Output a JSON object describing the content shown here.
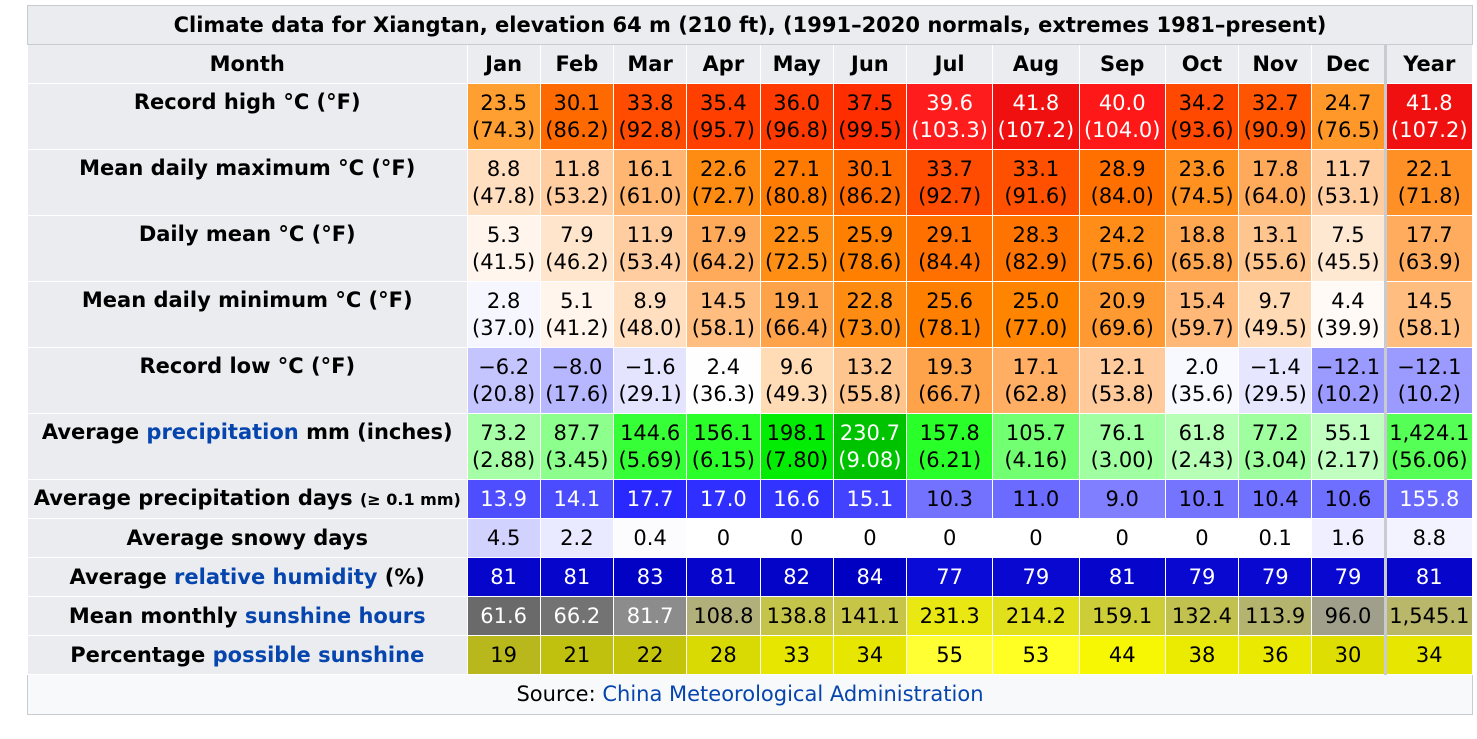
{
  "caption": "Climate data for Xiangtan, elevation 64 m (210 ft), (1991–2020 normals, extremes 1981–present)",
  "header": {
    "first": "Month",
    "months": [
      "Jan",
      "Feb",
      "Mar",
      "Apr",
      "May",
      "Jun",
      "Jul",
      "Aug",
      "Sep",
      "Oct",
      "Nov",
      "Dec"
    ],
    "year": "Year"
  },
  "rows": [
    {
      "label_parts": [
        {
          "text": "Record high °C (°F)"
        }
      ],
      "cells": [
        {
          "v": "23.5",
          "v2": "(74.3)",
          "bg": "#ff9e31",
          "fg": "#000000"
        },
        {
          "v": "30.1",
          "v2": "(86.2)",
          "bg": "#ff6a00",
          "fg": "#000000"
        },
        {
          "v": "33.8",
          "v2": "(92.8)",
          "bg": "#ff4c00",
          "fg": "#000000"
        },
        {
          "v": "35.4",
          "v2": "(95.7)",
          "bg": "#ff3f00",
          "fg": "#000000"
        },
        {
          "v": "36.0",
          "v2": "(96.8)",
          "bg": "#ff3a00",
          "fg": "#000000"
        },
        {
          "v": "37.5",
          "v2": "(99.5)",
          "bg": "#ff2e00",
          "fg": "#000000"
        },
        {
          "v": "39.6",
          "v2": "(103.3)",
          "bg": "#ff1c1c",
          "fg": "#ffffff"
        },
        {
          "v": "41.8",
          "v2": "(107.2)",
          "bg": "#f11010",
          "fg": "#ffffff"
        },
        {
          "v": "40.0",
          "v2": "(104.0)",
          "bg": "#ff1818",
          "fg": "#ffffff"
        },
        {
          "v": "34.2",
          "v2": "(93.6)",
          "bg": "#ff4800",
          "fg": "#000000"
        },
        {
          "v": "32.7",
          "v2": "(90.9)",
          "bg": "#ff5500",
          "fg": "#000000"
        },
        {
          "v": "24.7",
          "v2": "(76.5)",
          "bg": "#ff9829",
          "fg": "#000000"
        }
      ],
      "year": {
        "v": "41.8",
        "v2": "(107.2)",
        "bg": "#f11010",
        "fg": "#ffffff"
      }
    },
    {
      "label_parts": [
        {
          "text": "Mean daily maximum °C (°F)"
        }
      ],
      "cells": [
        {
          "v": "8.8",
          "v2": "(47.8)",
          "bg": "#ffdfc0",
          "fg": "#000000"
        },
        {
          "v": "11.8",
          "v2": "(53.2)",
          "bg": "#ffcda0",
          "fg": "#000000"
        },
        {
          "v": "16.1",
          "v2": "(61.0)",
          "bg": "#ffb672",
          "fg": "#000000"
        },
        {
          "v": "22.6",
          "v2": "(72.7)",
          "bg": "#ff8c12",
          "fg": "#000000"
        },
        {
          "v": "27.1",
          "v2": "(80.8)",
          "bg": "#ff7a00",
          "fg": "#000000"
        },
        {
          "v": "30.1",
          "v2": "(86.2)",
          "bg": "#ff6a00",
          "fg": "#000000"
        },
        {
          "v": "33.7",
          "v2": "(92.7)",
          "bg": "#ff4c00",
          "fg": "#000000"
        },
        {
          "v": "33.1",
          "v2": "(91.6)",
          "bg": "#ff5000",
          "fg": "#000000"
        },
        {
          "v": "28.9",
          "v2": "(84.0)",
          "bg": "#ff7000",
          "fg": "#000000"
        },
        {
          "v": "23.6",
          "v2": "(74.5)",
          "bg": "#ff9121",
          "fg": "#000000"
        },
        {
          "v": "17.8",
          "v2": "(64.0)",
          "bg": "#ffaa5b",
          "fg": "#000000"
        },
        {
          "v": "11.7",
          "v2": "(53.1)",
          "bg": "#ffcda0",
          "fg": "#000000"
        }
      ],
      "year": {
        "v": "22.1",
        "v2": "(71.8)",
        "bg": "#ff9025",
        "fg": "#000000"
      }
    },
    {
      "label_parts": [
        {
          "text": "Daily mean °C (°F)"
        }
      ],
      "cells": [
        {
          "v": "5.3",
          "v2": "(41.5)",
          "bg": "#fff5ec",
          "fg": "#000000"
        },
        {
          "v": "7.9",
          "v2": "(46.2)",
          "bg": "#ffe5cc",
          "fg": "#000000"
        },
        {
          "v": "11.9",
          "v2": "(53.4)",
          "bg": "#ffcda0",
          "fg": "#000000"
        },
        {
          "v": "17.9",
          "v2": "(64.2)",
          "bg": "#ffaa5b",
          "fg": "#000000"
        },
        {
          "v": "22.5",
          "v2": "(72.5)",
          "bg": "#ff8e15",
          "fg": "#000000"
        },
        {
          "v": "25.9",
          "v2": "(78.6)",
          "bg": "#ff8000",
          "fg": "#000000"
        },
        {
          "v": "29.1",
          "v2": "(84.4)",
          "bg": "#ff7000",
          "fg": "#000000"
        },
        {
          "v": "28.3",
          "v2": "(82.9)",
          "bg": "#ff7400",
          "fg": "#000000"
        },
        {
          "v": "24.2",
          "v2": "(75.6)",
          "bg": "#ff8d17",
          "fg": "#000000"
        },
        {
          "v": "18.8",
          "v2": "(65.8)",
          "bg": "#ffa650",
          "fg": "#000000"
        },
        {
          "v": "13.1",
          "v2": "(55.6)",
          "bg": "#ffc58e",
          "fg": "#000000"
        },
        {
          "v": "7.5",
          "v2": "(45.5)",
          "bg": "#ffe8d2",
          "fg": "#000000"
        }
      ],
      "year": {
        "v": "17.7",
        "v2": "(63.9)",
        "bg": "#ffac5e",
        "fg": "#000000"
      }
    },
    {
      "label_parts": [
        {
          "text": "Mean daily minimum °C (°F)"
        }
      ],
      "cells": [
        {
          "v": "2.8",
          "v2": "(37.0)",
          "bg": "#f6f6ff",
          "fg": "#000000"
        },
        {
          "v": "5.1",
          "v2": "(41.2)",
          "bg": "#fff5ec",
          "fg": "#000000"
        },
        {
          "v": "8.9",
          "v2": "(48.0)",
          "bg": "#ffdfc0",
          "fg": "#000000"
        },
        {
          "v": "14.5",
          "v2": "(58.1)",
          "bg": "#ffbd7f",
          "fg": "#000000"
        },
        {
          "v": "19.1",
          "v2": "(66.4)",
          "bg": "#ffa34b",
          "fg": "#000000"
        },
        {
          "v": "22.8",
          "v2": "(73.0)",
          "bg": "#ff8c12",
          "fg": "#000000"
        },
        {
          "v": "25.6",
          "v2": "(78.1)",
          "bg": "#ff8000",
          "fg": "#000000"
        },
        {
          "v": "25.0",
          "v2": "(77.0)",
          "bg": "#ff8400",
          "fg": "#000000"
        },
        {
          "v": "20.9",
          "v2": "(69.6)",
          "bg": "#ff9a33",
          "fg": "#000000"
        },
        {
          "v": "15.4",
          "v2": "(59.7)",
          "bg": "#ffb877",
          "fg": "#000000"
        },
        {
          "v": "9.7",
          "v2": "(49.5)",
          "bg": "#ffdab5",
          "fg": "#000000"
        },
        {
          "v": "4.4",
          "v2": "(39.9)",
          "bg": "#fffaf6",
          "fg": "#000000"
        }
      ],
      "year": {
        "v": "14.5",
        "v2": "(58.1)",
        "bg": "#ffbd7f",
        "fg": "#000000"
      }
    },
    {
      "label_parts": [
        {
          "text": "Record low °C (°F)"
        }
      ],
      "cells": [
        {
          "v": "−6.2",
          "v2": "(20.8)",
          "bg": "#c4c4ff",
          "fg": "#000000"
        },
        {
          "v": "−8.0",
          "v2": "(17.6)",
          "bg": "#b7b7ff",
          "fg": "#000000"
        },
        {
          "v": "−1.6",
          "v2": "(29.1)",
          "bg": "#e4e4ff",
          "fg": "#000000"
        },
        {
          "v": "2.4",
          "v2": "(36.3)",
          "bg": "#fefeff",
          "fg": "#000000"
        },
        {
          "v": "9.6",
          "v2": "(49.3)",
          "bg": "#ffdbb6",
          "fg": "#000000"
        },
        {
          "v": "13.2",
          "v2": "(55.8)",
          "bg": "#ffc58e",
          "fg": "#000000"
        },
        {
          "v": "19.3",
          "v2": "(66.7)",
          "bg": "#ffa34b",
          "fg": "#000000"
        },
        {
          "v": "17.1",
          "v2": "(62.8)",
          "bg": "#ffae63",
          "fg": "#000000"
        },
        {
          "v": "12.1",
          "v2": "(53.8)",
          "bg": "#ffcb9c",
          "fg": "#000000"
        },
        {
          "v": "2.0",
          "v2": "(35.6)",
          "bg": "#f8f8ff",
          "fg": "#000000"
        },
        {
          "v": "−1.4",
          "v2": "(29.5)",
          "bg": "#e6e6ff",
          "fg": "#000000"
        },
        {
          "v": "−12.1",
          "v2": "(10.2)",
          "bg": "#9b9bff",
          "fg": "#000000"
        }
      ],
      "year": {
        "v": "−12.1",
        "v2": "(10.2)",
        "bg": "#9b9bff",
        "fg": "#000000"
      }
    },
    {
      "label_parts": [
        {
          "text": "Average "
        },
        {
          "text": "precipitation",
          "link": true
        },
        {
          "text": " mm (inches)"
        }
      ],
      "cells": [
        {
          "v": "73.2",
          "v2": "(2.88)",
          "bg": "#a6ffa6",
          "fg": "#000000"
        },
        {
          "v": "87.7",
          "v2": "(3.45)",
          "bg": "#8dff8d",
          "fg": "#000000"
        },
        {
          "v": "144.6",
          "v2": "(5.69)",
          "bg": "#37ff37",
          "fg": "#000000"
        },
        {
          "v": "156.1",
          "v2": "(6.15)",
          "bg": "#2aff2a",
          "fg": "#000000"
        },
        {
          "v": "198.1",
          "v2": "(7.80)",
          "bg": "#03ec03",
          "fg": "#000000"
        },
        {
          "v": "230.7",
          "v2": "(9.08)",
          "bg": "#00c300",
          "fg": "#ffffff"
        },
        {
          "v": "157.8",
          "v2": "(6.21)",
          "bg": "#29ff29",
          "fg": "#000000"
        },
        {
          "v": "105.7",
          "v2": "(4.16)",
          "bg": "#72ff72",
          "fg": "#000000"
        },
        {
          "v": "76.1",
          "v2": "(3.00)",
          "bg": "#a0ffa0",
          "fg": "#000000"
        },
        {
          "v": "61.8",
          "v2": "(2.43)",
          "bg": "#b7ffb7",
          "fg": "#000000"
        },
        {
          "v": "77.2",
          "v2": "(3.04)",
          "bg": "#9fff9f",
          "fg": "#000000"
        },
        {
          "v": "55.1",
          "v2": "(2.17)",
          "bg": "#c1ffc1",
          "fg": "#000000"
        }
      ],
      "year": {
        "v": "1,424.1",
        "v2": "(56.06)",
        "bg": "#56ff56",
        "fg": "#000000"
      }
    },
    {
      "label_parts": [
        {
          "text": "Average precipitation days "
        },
        {
          "text": "(≥ 0.1 mm)",
          "small": true
        }
      ],
      "single": true,
      "cells": [
        {
          "v": "13.9",
          "bg": "#4e4eff",
          "fg": "#ffffff"
        },
        {
          "v": "14.1",
          "bg": "#4c4cff",
          "fg": "#ffffff"
        },
        {
          "v": "17.7",
          "bg": "#2828ff",
          "fg": "#ffffff"
        },
        {
          "v": "17.0",
          "bg": "#2f2fff",
          "fg": "#ffffff"
        },
        {
          "v": "16.6",
          "bg": "#3333ff",
          "fg": "#ffffff"
        },
        {
          "v": "15.1",
          "bg": "#4242ff",
          "fg": "#ffffff"
        },
        {
          "v": "10.3",
          "bg": "#7272ff",
          "fg": "#000000"
        },
        {
          "v": "11.0",
          "bg": "#6b6bff",
          "fg": "#000000"
        },
        {
          "v": "9.0",
          "bg": "#7f7fff",
          "fg": "#000000"
        },
        {
          "v": "10.1",
          "bg": "#7474ff",
          "fg": "#000000"
        },
        {
          "v": "10.4",
          "bg": "#7171ff",
          "fg": "#000000"
        },
        {
          "v": "10.6",
          "bg": "#6f6fff",
          "fg": "#000000"
        }
      ],
      "year": {
        "v": "155.8",
        "bg": "#6a6aff",
        "fg": "#ffffff"
      }
    },
    {
      "label_parts": [
        {
          "text": "Average snowy days"
        }
      ],
      "single": true,
      "cells": [
        {
          "v": "4.5",
          "bg": "#d2d2ff",
          "fg": "#000000"
        },
        {
          "v": "2.2",
          "bg": "#e9e9ff",
          "fg": "#000000"
        },
        {
          "v": "0.4",
          "bg": "#fcfcff",
          "fg": "#000000"
        },
        {
          "v": "0",
          "bg": "#ffffff",
          "fg": "#000000"
        },
        {
          "v": "0",
          "bg": "#ffffff",
          "fg": "#000000"
        },
        {
          "v": "0",
          "bg": "#ffffff",
          "fg": "#000000"
        },
        {
          "v": "0",
          "bg": "#ffffff",
          "fg": "#000000"
        },
        {
          "v": "0",
          "bg": "#ffffff",
          "fg": "#000000"
        },
        {
          "v": "0",
          "bg": "#ffffff",
          "fg": "#000000"
        },
        {
          "v": "0",
          "bg": "#ffffff",
          "fg": "#000000"
        },
        {
          "v": "0.1",
          "bg": "#ffffff",
          "fg": "#000000"
        },
        {
          "v": "1.6",
          "bg": "#efefff",
          "fg": "#000000"
        }
      ],
      "year": {
        "v": "8.8",
        "bg": "#f3f3ff",
        "fg": "#000000"
      }
    },
    {
      "label_parts": [
        {
          "text": "Average "
        },
        {
          "text": "relative humidity",
          "link": true
        },
        {
          "text": " (%)"
        }
      ],
      "single": true,
      "cells": [
        {
          "v": "81",
          "bg": "#0505cb",
          "fg": "#ffffff"
        },
        {
          "v": "81",
          "bg": "#0505cb",
          "fg": "#ffffff"
        },
        {
          "v": "83",
          "bg": "#0202c5",
          "fg": "#ffffff"
        },
        {
          "v": "81",
          "bg": "#0505cb",
          "fg": "#ffffff"
        },
        {
          "v": "82",
          "bg": "#0404c8",
          "fg": "#ffffff"
        },
        {
          "v": "84",
          "bg": "#0000c2",
          "fg": "#ffffff"
        },
        {
          "v": "77",
          "bg": "#0b0bd8",
          "fg": "#ffffff"
        },
        {
          "v": "79",
          "bg": "#0808d1",
          "fg": "#ffffff"
        },
        {
          "v": "81",
          "bg": "#0505cb",
          "fg": "#ffffff"
        },
        {
          "v": "79",
          "bg": "#0808d1",
          "fg": "#ffffff"
        },
        {
          "v": "79",
          "bg": "#0808d1",
          "fg": "#ffffff"
        },
        {
          "v": "79",
          "bg": "#0808d1",
          "fg": "#ffffff"
        }
      ],
      "year": {
        "v": "81",
        "bg": "#0505cb",
        "fg": "#ffffff"
      }
    },
    {
      "label_parts": [
        {
          "text": "Mean monthly "
        },
        {
          "text": "sunshine hours",
          "link": true
        }
      ],
      "single": true,
      "cells": [
        {
          "v": "61.6",
          "bg": "#6a6a6a",
          "fg": "#ffffff"
        },
        {
          "v": "66.2",
          "bg": "#737373",
          "fg": "#ffffff"
        },
        {
          "v": "81.7",
          "bg": "#8c8c8c",
          "fg": "#ffffff"
        },
        {
          "v": "108.8",
          "bg": "#b1b07a",
          "fg": "#000000"
        },
        {
          "v": "138.8",
          "bg": "#c4c44a",
          "fg": "#000000"
        },
        {
          "v": "141.1",
          "bg": "#c6c547",
          "fg": "#000000"
        },
        {
          "v": "231.3",
          "bg": "#e9e812",
          "fg": "#000000"
        },
        {
          "v": "214.2",
          "bg": "#e1e01c",
          "fg": "#000000"
        },
        {
          "v": "159.1",
          "bg": "#cdcd38",
          "fg": "#000000"
        },
        {
          "v": "132.4",
          "bg": "#c1c150",
          "fg": "#000000"
        },
        {
          "v": "113.9",
          "bg": "#b4b46e",
          "fg": "#000000"
        },
        {
          "v": "96.0",
          "bg": "#a09f8c",
          "fg": "#000000"
        }
      ],
      "year": {
        "v": "1,545.1",
        "bg": "#b8b76a",
        "fg": "#000000"
      }
    },
    {
      "label_parts": [
        {
          "text": "Percentage "
        },
        {
          "text": "possible sunshine",
          "link": true
        }
      ],
      "single": true,
      "cells": [
        {
          "v": "19",
          "bg": "#b8b81c",
          "fg": "#000000"
        },
        {
          "v": "21",
          "bg": "#c0c00e",
          "fg": "#000000"
        },
        {
          "v": "22",
          "bg": "#c4c40b",
          "fg": "#000000"
        },
        {
          "v": "28",
          "bg": "#d9d903",
          "fg": "#000000"
        },
        {
          "v": "33",
          "bg": "#e6e600",
          "fg": "#000000"
        },
        {
          "v": "34",
          "bg": "#e6e600",
          "fg": "#000000"
        },
        {
          "v": "55",
          "bg": "#ffff33",
          "fg": "#000000"
        },
        {
          "v": "53",
          "bg": "#ffff24",
          "fg": "#000000"
        },
        {
          "v": "44",
          "bg": "#f7f704",
          "fg": "#000000"
        },
        {
          "v": "38",
          "bg": "#ebeb02",
          "fg": "#000000"
        },
        {
          "v": "36",
          "bg": "#e9e901",
          "fg": "#000000"
        },
        {
          "v": "30",
          "bg": "#dede02",
          "fg": "#000000"
        }
      ],
      "year": {
        "v": "34",
        "bg": "#e6e600",
        "fg": "#000000"
      }
    }
  ],
  "source": {
    "prefix": "Source: ",
    "link": "China Meteorological Administration"
  }
}
